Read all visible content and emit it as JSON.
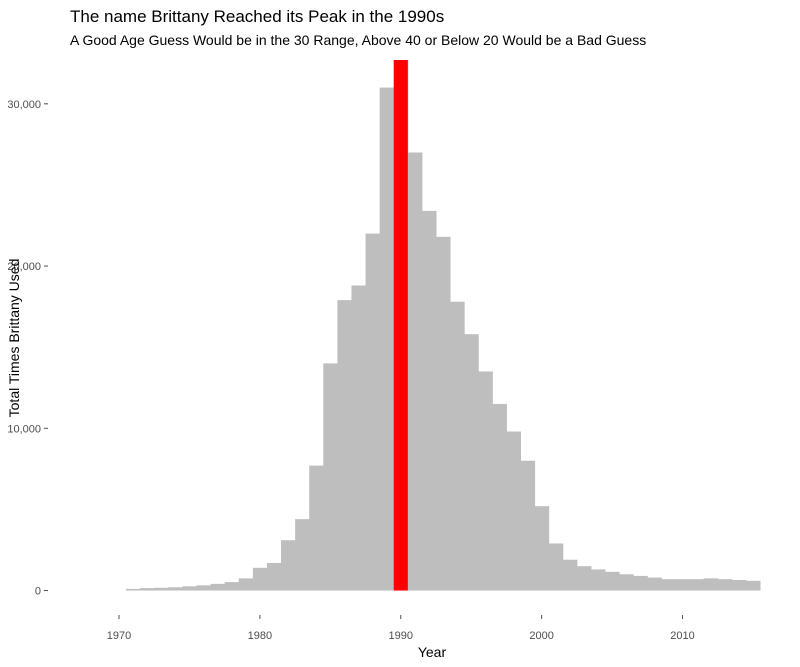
{
  "chart_data": {
    "type": "bar",
    "title": "The name Brittany Reached its Peak in the 1990s",
    "subtitle": "A Good Age Guess Would be in the 30 Range, Above 40 or Below 20 Would be a Bad Guess",
    "xlabel": "Year",
    "ylabel": "Total Times Brittany Used",
    "xlim": [
      1965.1,
      2015.5
    ],
    "ylim": [
      -1200,
      32700
    ],
    "x_ticks": [
      1970,
      1980,
      1990,
      2000,
      2010
    ],
    "x_tick_labels": [
      "1970",
      "1980",
      "1990",
      "2000",
      "2010"
    ],
    "y_ticks": [
      0,
      10000,
      20000,
      30000
    ],
    "y_tick_labels": [
      "0",
      "10,000",
      "20,000",
      "30,000"
    ],
    "grid": false,
    "legend": "none",
    "bar_color": "#bebebe",
    "highlight_color": "#ff0000",
    "x": [
      1971,
      1972,
      1973,
      1974,
      1975,
      1976,
      1977,
      1978,
      1979,
      1980,
      1981,
      1982,
      1983,
      1984,
      1985,
      1986,
      1987,
      1988,
      1989,
      1990,
      1991,
      1992,
      1993,
      1994,
      1995,
      1996,
      1997,
      1998,
      1999,
      2000,
      2001,
      2002,
      2003,
      2004,
      2005,
      2006,
      2007,
      2008,
      2009,
      2010,
      2011,
      2012,
      2013,
      2014,
      2015
    ],
    "values": [
      100,
      150,
      170,
      200,
      260,
      320,
      410,
      520,
      750,
      1400,
      1700,
      3100,
      4400,
      7700,
      14000,
      17900,
      18800,
      22000,
      31000,
      32700,
      27000,
      23400,
      21800,
      17800,
      15800,
      13500,
      11500,
      9800,
      8000,
      5200,
      2900,
      1900,
      1500,
      1300,
      1150,
      1000,
      900,
      800,
      700,
      700,
      700,
      750,
      700,
      650,
      600
    ],
    "highlight": {
      "x": 1990,
      "value": 32700
    }
  }
}
